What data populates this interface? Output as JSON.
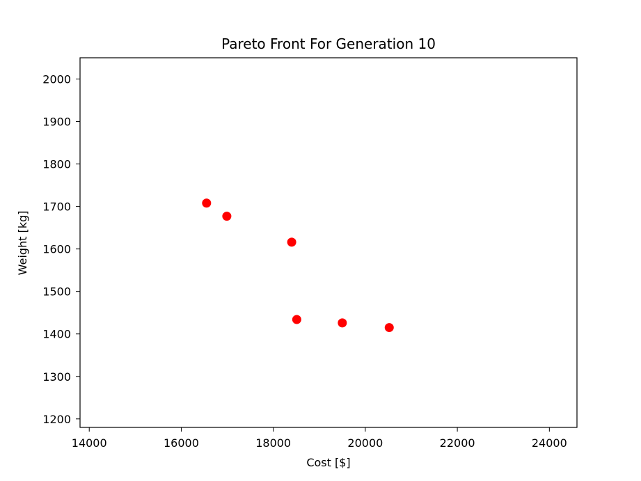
{
  "chart_data": {
    "type": "scatter",
    "title": "Pareto Front For Generation 10",
    "xlabel": "Cost [$]",
    "ylabel": "Weight [kg]",
    "xlim": [
      13800,
      24600
    ],
    "ylim": [
      1180,
      2050
    ],
    "xticks": [
      14000,
      16000,
      18000,
      20000,
      22000,
      24000
    ],
    "yticks": [
      1200,
      1300,
      1400,
      1500,
      1600,
      1700,
      1800,
      1900,
      2000
    ],
    "grid": false,
    "marker_color": "#ff0000",
    "series": [
      {
        "points": [
          {
            "x": 16550,
            "y": 1708
          },
          {
            "x": 16990,
            "y": 1677
          },
          {
            "x": 18400,
            "y": 1616
          },
          {
            "x": 18510,
            "y": 1434
          },
          {
            "x": 19500,
            "y": 1426
          },
          {
            "x": 20520,
            "y": 1415
          }
        ]
      }
    ]
  }
}
